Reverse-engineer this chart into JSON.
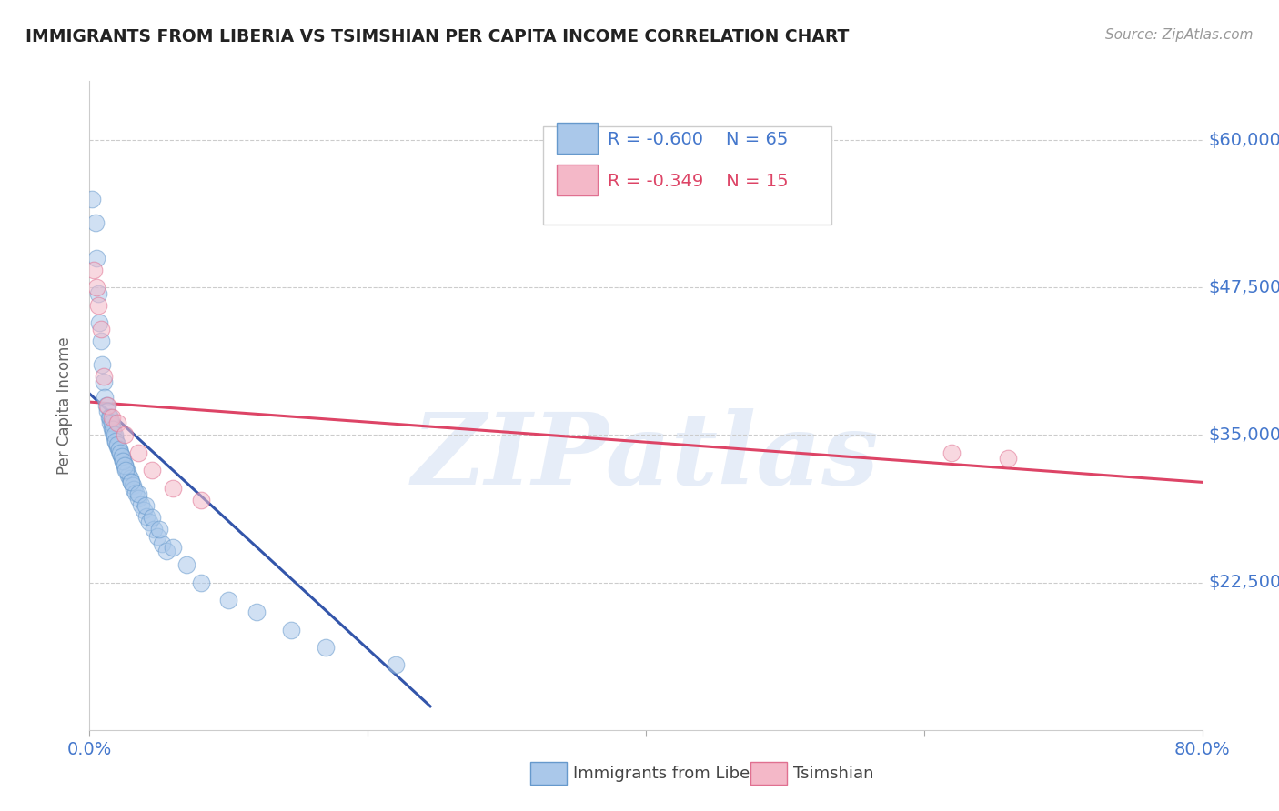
{
  "title": "IMMIGRANTS FROM LIBERIA VS TSIMSHIAN PER CAPITA INCOME CORRELATION CHART",
  "source": "Source: ZipAtlas.com",
  "ylabel": "Per Capita Income",
  "xlim": [
    0.0,
    0.8
  ],
  "ylim": [
    10000,
    65000
  ],
  "yticks": [
    22500,
    35000,
    47500,
    60000
  ],
  "ytick_labels": [
    "$22,500",
    "$35,000",
    "$47,500",
    "$60,000"
  ],
  "xticks": [
    0.0,
    0.2,
    0.4,
    0.6,
    0.8
  ],
  "xtick_labels": [
    "0.0%",
    "",
    "",
    "",
    "80.0%"
  ],
  "grid_color": "#cccccc",
  "bg_color": "#ffffff",
  "watermark": "ZIPatlas",
  "blue_color": "#aac8ea",
  "pink_color": "#f4b8c8",
  "blue_edge_color": "#6699cc",
  "pink_edge_color": "#e07090",
  "blue_line_color": "#3355aa",
  "pink_line_color": "#dd4466",
  "legend_R_blue": "R = -0.600",
  "legend_N_blue": "N = 65",
  "legend_R_pink": "R = -0.349",
  "legend_N_pink": "N = 15",
  "blue_scatter_x": [
    0.002,
    0.004,
    0.005,
    0.006,
    0.007,
    0.008,
    0.009,
    0.01,
    0.011,
    0.012,
    0.013,
    0.014,
    0.015,
    0.016,
    0.017,
    0.018,
    0.019,
    0.02,
    0.021,
    0.022,
    0.023,
    0.024,
    0.025,
    0.026,
    0.027,
    0.028,
    0.029,
    0.03,
    0.031,
    0.032,
    0.033,
    0.035,
    0.037,
    0.039,
    0.041,
    0.043,
    0.046,
    0.049,
    0.052,
    0.055,
    0.015,
    0.016,
    0.017,
    0.018,
    0.019,
    0.02,
    0.021,
    0.022,
    0.023,
    0.024,
    0.025,
    0.026,
    0.03,
    0.035,
    0.04,
    0.045,
    0.05,
    0.06,
    0.07,
    0.08,
    0.1,
    0.12,
    0.145,
    0.17,
    0.22
  ],
  "blue_scatter_y": [
    55000,
    53000,
    50000,
    47000,
    44500,
    43000,
    41000,
    39500,
    38200,
    37500,
    37000,
    36500,
    36000,
    35600,
    35200,
    34800,
    34400,
    34000,
    33700,
    33400,
    33100,
    32800,
    32500,
    32200,
    31900,
    31600,
    31300,
    31000,
    30700,
    30400,
    30100,
    29600,
    29100,
    28600,
    28100,
    27600,
    27000,
    26400,
    25800,
    25200,
    36500,
    36000,
    35500,
    35000,
    34500,
    34200,
    33800,
    33500,
    33200,
    32800,
    32400,
    32000,
    31000,
    30000,
    29000,
    28000,
    27000,
    25500,
    24000,
    22500,
    21000,
    20000,
    18500,
    17000,
    15500
  ],
  "pink_scatter_x": [
    0.003,
    0.005,
    0.006,
    0.008,
    0.01,
    0.013,
    0.016,
    0.02,
    0.025,
    0.035,
    0.045,
    0.06,
    0.08,
    0.62,
    0.66
  ],
  "pink_scatter_y": [
    49000,
    47500,
    46000,
    44000,
    40000,
    37500,
    36500,
    36000,
    35000,
    33500,
    32000,
    30500,
    29500,
    33500,
    33000
  ],
  "blue_trend_x": [
    0.0,
    0.245
  ],
  "blue_trend_y": [
    38500,
    12000
  ],
  "pink_trend_x": [
    0.0,
    0.8
  ],
  "pink_trend_y": [
    37800,
    31000
  ]
}
